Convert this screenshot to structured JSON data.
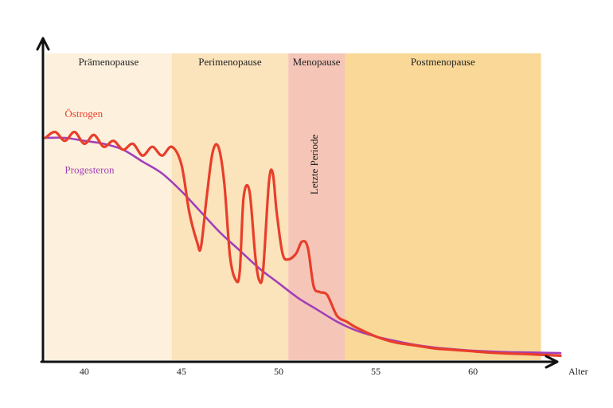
{
  "chart_data": {
    "type": "line",
    "title": "",
    "xlabel": "Alter",
    "ylabel": "",
    "xlim": [
      38,
      64.5
    ],
    "ylim": [
      0,
      1
    ],
    "x_ticks": [
      40,
      45,
      50,
      55,
      60
    ],
    "grid": false,
    "legend": "inline",
    "phases": [
      {
        "name": "Prämenopause",
        "start": 38,
        "end": 44.5,
        "color": "#fdf1de"
      },
      {
        "name": "Perimenopause",
        "start": 44.5,
        "end": 50.5,
        "color": "#fbe3bc"
      },
      {
        "name": "Menopause",
        "start": 50.5,
        "end": 53.4,
        "color": "#f5c6b8"
      },
      {
        "name": "Postmenopause",
        "start": 53.4,
        "end": 63.5,
        "color": "#f9d898"
      }
    ],
    "annotations": [
      {
        "text": "Letzte Periode",
        "x": 52,
        "y": 0.66,
        "rotation": -90
      }
    ],
    "series": [
      {
        "name": "Östrogen",
        "color": "#e83e2a",
        "label_position": {
          "x": 39,
          "y": 0.82
        },
        "x": [
          38,
          38.5,
          39,
          39.5,
          40,
          40.5,
          41,
          41.5,
          42,
          42.5,
          43,
          43.5,
          44,
          44.5,
          45,
          45.4,
          45.8,
          46,
          46.3,
          46.6,
          46.9,
          47.2,
          47.5,
          47.8,
          48,
          48.2,
          48.5,
          48.8,
          49,
          49.2,
          49.5,
          49.7,
          49.9,
          50.2,
          50.5,
          50.9,
          51.2,
          51.5,
          51.8,
          52.1,
          52.5,
          53,
          53.5,
          54,
          55,
          56,
          57,
          58,
          59,
          60,
          61,
          62,
          63,
          64.5
        ],
        "y": [
          0.75,
          0.77,
          0.74,
          0.77,
          0.73,
          0.76,
          0.72,
          0.74,
          0.71,
          0.73,
          0.69,
          0.72,
          0.69,
          0.72,
          0.66,
          0.5,
          0.4,
          0.38,
          0.55,
          0.7,
          0.72,
          0.6,
          0.35,
          0.27,
          0.3,
          0.55,
          0.57,
          0.35,
          0.27,
          0.3,
          0.6,
          0.63,
          0.5,
          0.36,
          0.34,
          0.36,
          0.4,
          0.38,
          0.25,
          0.23,
          0.22,
          0.15,
          0.13,
          0.11,
          0.08,
          0.06,
          0.05,
          0.04,
          0.035,
          0.03,
          0.025,
          0.022,
          0.02,
          0.015
        ]
      },
      {
        "name": "Progesteron",
        "color": "#a23fb8",
        "label_position": {
          "x": 39,
          "y": 0.63
        },
        "x": [
          38,
          39,
          40,
          41,
          42,
          43,
          44,
          45,
          46,
          47,
          48,
          49,
          50,
          51,
          52,
          53,
          54,
          55,
          56,
          57,
          58,
          59,
          60,
          61,
          62,
          63,
          64.5
        ],
        "y": [
          0.75,
          0.75,
          0.74,
          0.73,
          0.71,
          0.67,
          0.63,
          0.57,
          0.5,
          0.43,
          0.37,
          0.31,
          0.26,
          0.21,
          0.17,
          0.13,
          0.1,
          0.08,
          0.065,
          0.052,
          0.043,
          0.037,
          0.032,
          0.029,
          0.027,
          0.026,
          0.024
        ]
      }
    ]
  }
}
